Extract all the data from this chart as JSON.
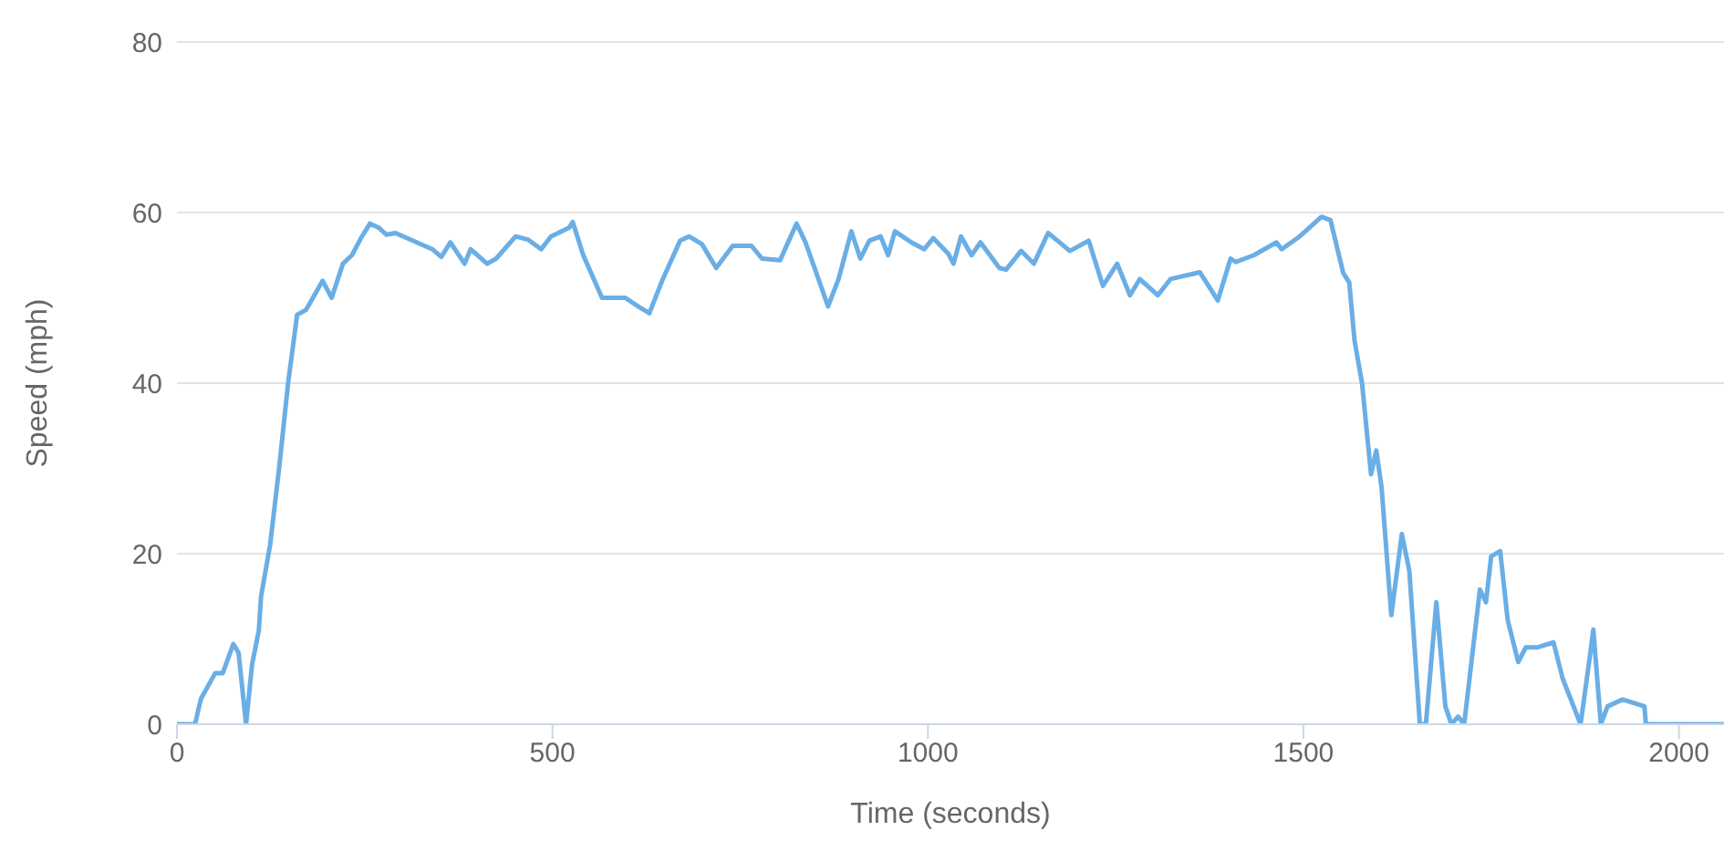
{
  "chart_data": {
    "type": "line",
    "xlabel": "Time (seconds)",
    "ylabel": "Speed (mph)",
    "xlim": [
      0,
      2060
    ],
    "xticks": [
      0,
      500,
      1000,
      1500,
      2000
    ],
    "ylim": [
      0,
      80
    ],
    "yticks": [
      0,
      20,
      40,
      60,
      80
    ],
    "grid": "y",
    "legend": false,
    "marker": "none",
    "line_style": "solid",
    "series": [
      {
        "color": "#6aaee6",
        "x": [
          0,
          24,
          32,
          51,
          61,
          75,
          82,
          92,
          100,
          109,
          112,
          124,
          136,
          148,
          160,
          172,
          194,
          206,
          221,
          233,
          245,
          257,
          269,
          279,
          291,
          340,
          352,
          364,
          383,
          391,
          413,
          425,
          451,
          468,
          485,
          498,
          522,
          527,
          541,
          566,
          597,
          614,
          629,
          646,
          670,
          682,
          699,
          718,
          740,
          765,
          779,
          803,
          825,
          837,
          867,
          881,
          898,
          910,
          922,
          937,
          947,
          956,
          978,
          995,
          1007,
          1027,
          1034,
          1044,
          1058,
          1070,
          1095,
          1104,
          1124,
          1141,
          1160,
          1189,
          1214,
          1233,
          1252,
          1269,
          1282,
          1306,
          1323,
          1362,
          1386,
          1403,
          1410,
          1434,
          1464,
          1471,
          1495,
          1524,
          1536,
          1553,
          1561,
          1568,
          1578,
          1590,
          1597,
          1604,
          1617,
          1631,
          1641,
          1655,
          1663,
          1677,
          1689,
          1697,
          1706,
          1714,
          1735,
          1743,
          1750,
          1762,
          1772,
          1786,
          1796,
          1811,
          1833,
          1845,
          1869,
          1881,
          1886,
          1896,
          1905,
          1925,
          1954,
          1956,
          2058
        ],
        "values": [
          0,
          0,
          3,
          6,
          6,
          9.4,
          8.4,
          0,
          7,
          11,
          15,
          21,
          30,
          40,
          48,
          48.6,
          52,
          50,
          54,
          55,
          57,
          58.7,
          58.2,
          57.4,
          57.6,
          55.7,
          54.8,
          56.5,
          54,
          55.7,
          54,
          54.6,
          57.2,
          56.8,
          55.7,
          57.2,
          58.2,
          58.9,
          55,
          50,
          50,
          49,
          48.2,
          52,
          56.7,
          57.2,
          56.3,
          53.5,
          56.1,
          56.1,
          54.6,
          54.4,
          58.7,
          56.5,
          49,
          52.2,
          57.8,
          54.6,
          56.7,
          57.2,
          55,
          57.8,
          56.5,
          55.7,
          57,
          55.2,
          54,
          57.2,
          55,
          56.5,
          53.5,
          53.3,
          55.5,
          54,
          57.6,
          55.5,
          56.7,
          51.4,
          54,
          50.3,
          52.2,
          50.3,
          52.2,
          53,
          49.7,
          54.6,
          54.2,
          55,
          56.5,
          55.7,
          57.2,
          59.5,
          59.1,
          52.9,
          51.8,
          45,
          40,
          29.3,
          32.1,
          27.8,
          12.8,
          22.3,
          18,
          0,
          0,
          14.3,
          2.1,
          0,
          0.9,
          0,
          15.8,
          14.3,
          19.7,
          20.3,
          12.2,
          7.3,
          9,
          9,
          9.6,
          5.4,
          0,
          7.7,
          11.1,
          0,
          2.1,
          2.9,
          2.1,
          0,
          0
        ]
      }
    ]
  }
}
